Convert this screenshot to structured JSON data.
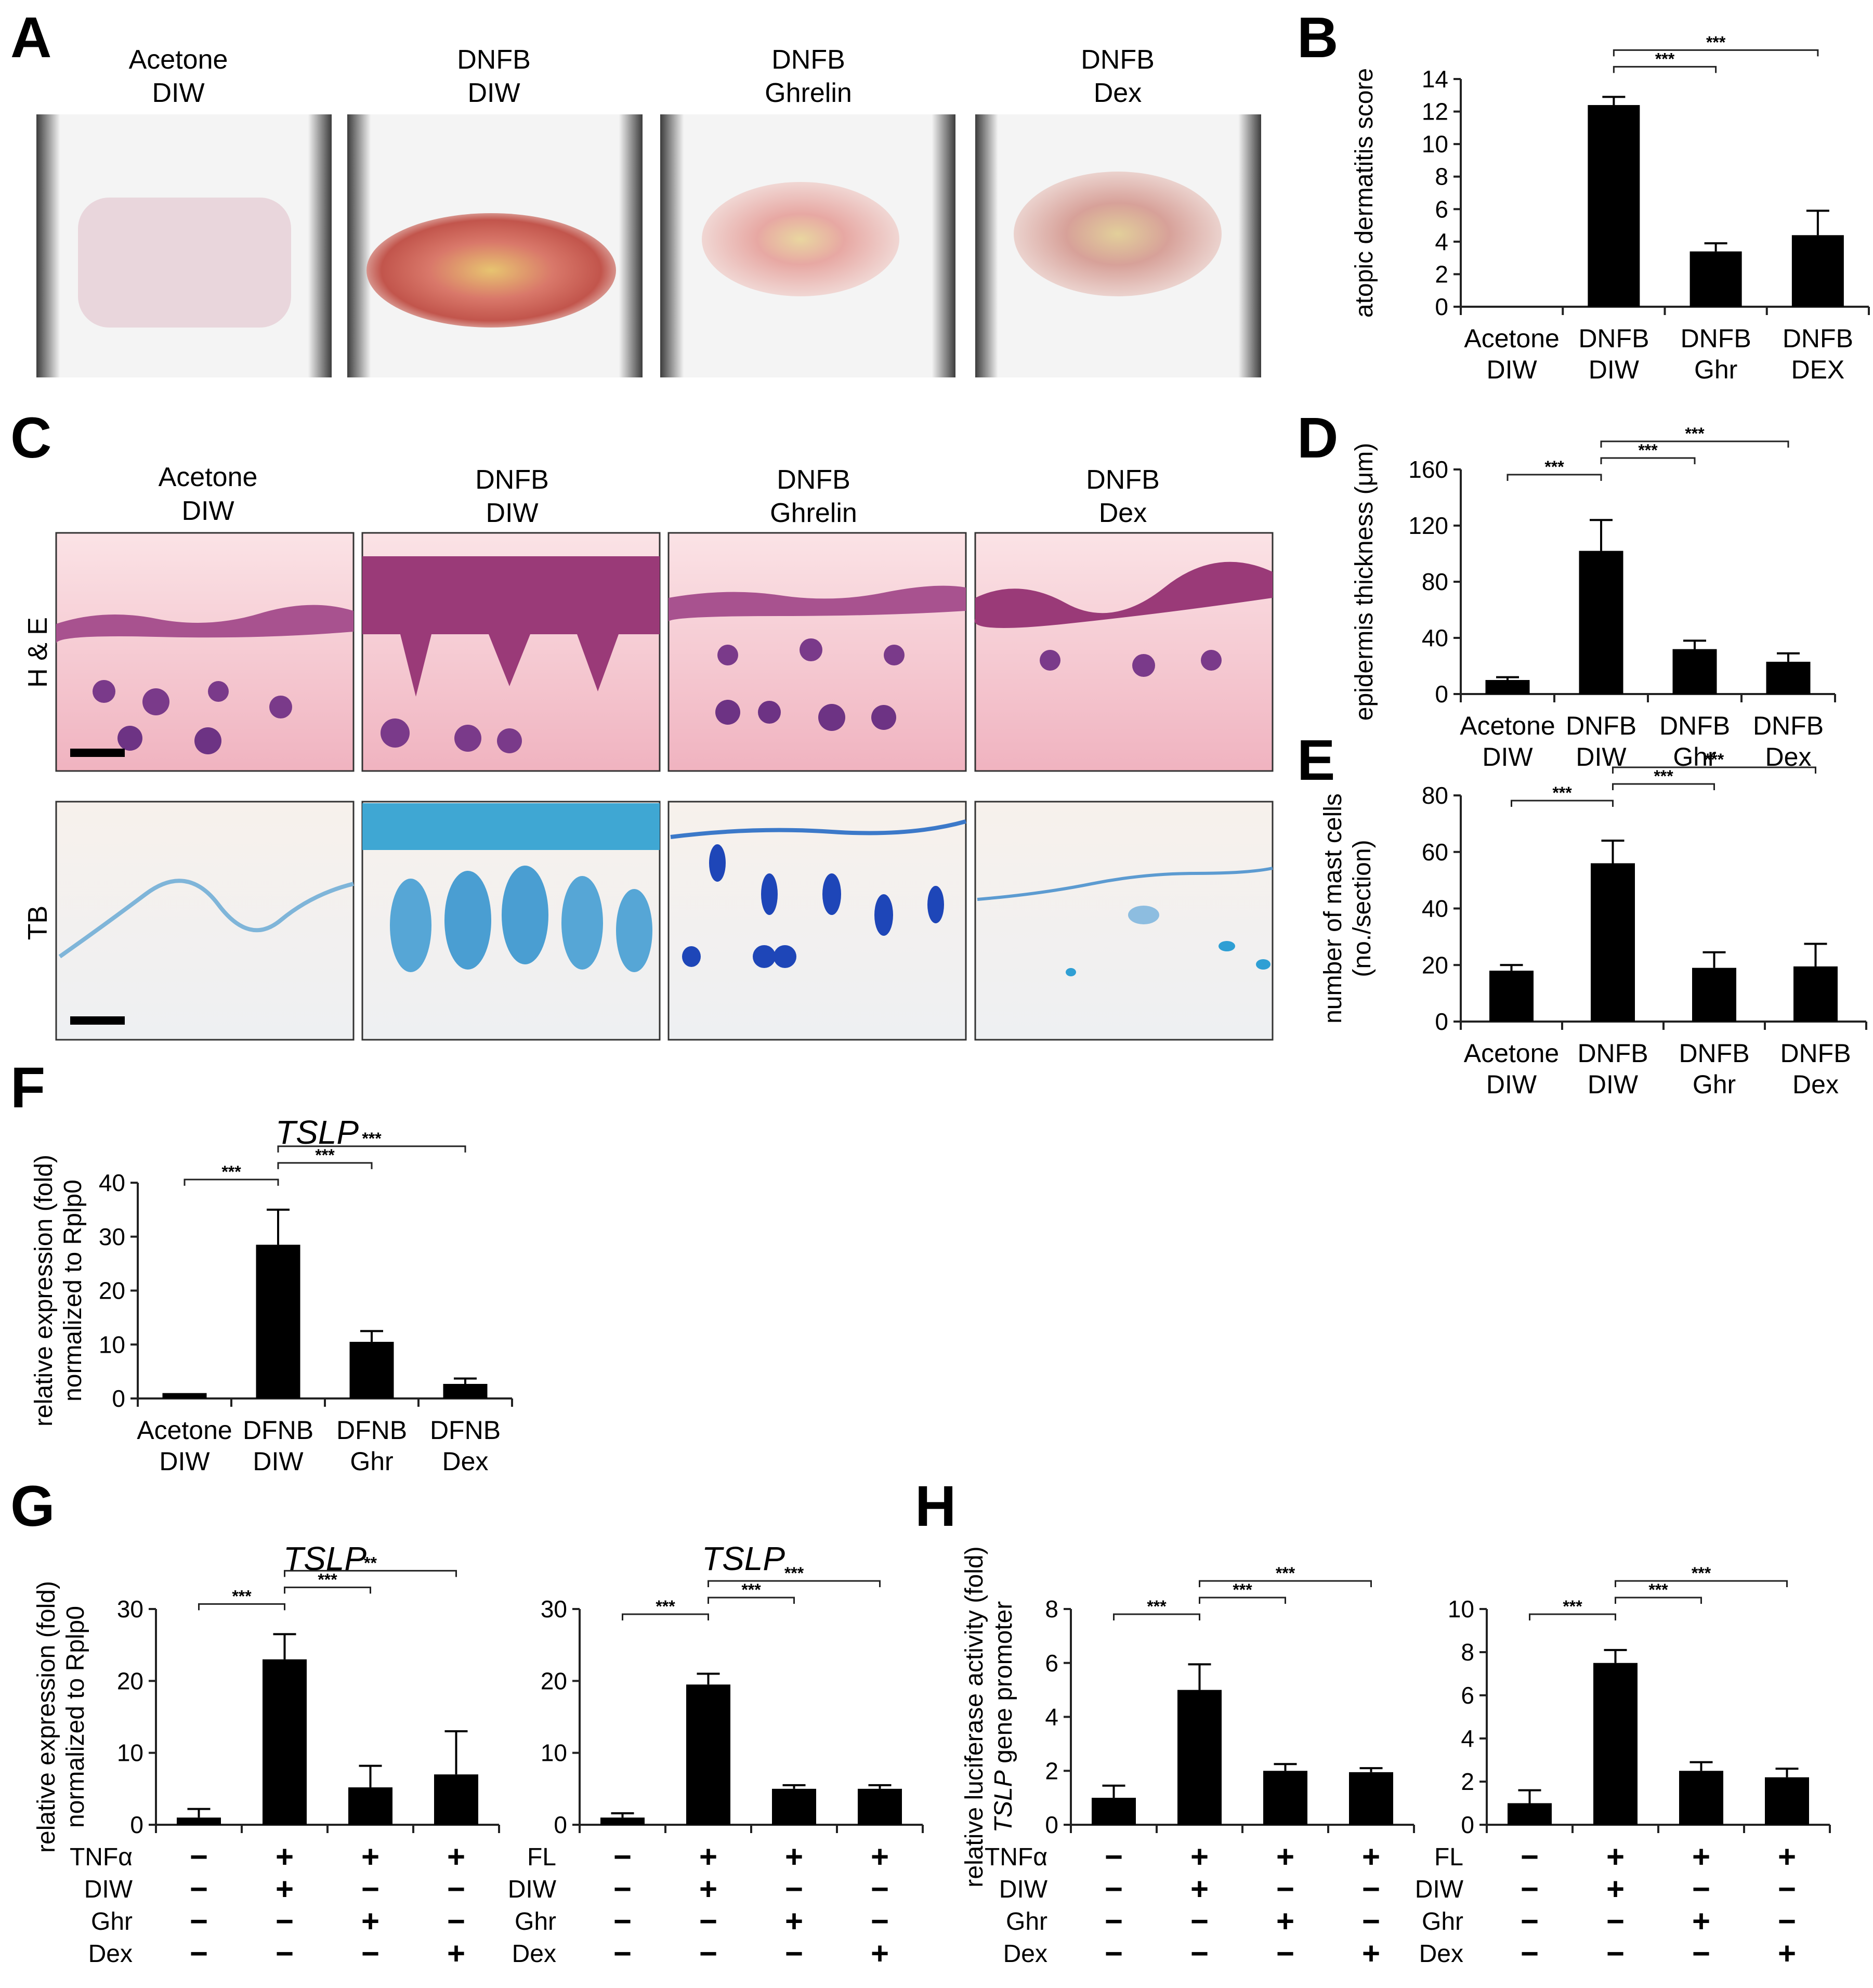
{
  "panel_a": {
    "label": "A",
    "photos": [
      {
        "line1": "Acetone",
        "line2": "DIW",
        "lesion": "none"
      },
      {
        "line1": "DNFB",
        "line2": "DIW",
        "lesion": "severe"
      },
      {
        "line1": "DNFB",
        "line2": "Ghrelin",
        "lesion": "mild"
      },
      {
        "line1": "DNFB",
        "line2": "Dex",
        "lesion": "moderate"
      }
    ]
  },
  "panel_c": {
    "label": "C",
    "columns": [
      {
        "line1": "Acetone",
        "line2": "DIW"
      },
      {
        "line1": "DNFB",
        "line2": "DIW"
      },
      {
        "line1": "DNFB",
        "line2": "Ghrelin"
      },
      {
        "line1": "DNFB",
        "line2": "Dex"
      }
    ],
    "rows": [
      "H & E",
      "TB"
    ]
  },
  "chart_data": [
    {
      "id": "B",
      "label": "B",
      "type": "bar",
      "ylabel": "atopic dermatitis score",
      "ylim": [
        0,
        14
      ],
      "yticks": [
        0,
        2,
        4,
        6,
        8,
        10,
        12,
        14
      ],
      "categories": [
        [
          "Acetone",
          "DIW"
        ],
        [
          "DNFB",
          "DIW"
        ],
        [
          "DNFB",
          "Ghr"
        ],
        [
          "DNFB",
          "DEX"
        ]
      ],
      "values": [
        0,
        12.4,
        3.4,
        4.4
      ],
      "errors": [
        0,
        0.5,
        0.5,
        1.5
      ],
      "significance": [
        {
          "from": 1,
          "to": 2,
          "label": "***"
        },
        {
          "from": 1,
          "to": 3,
          "label": "***"
        }
      ]
    },
    {
      "id": "D",
      "label": "D",
      "type": "bar",
      "ylabel": "epidermis thickness (μm)",
      "ylim": [
        0,
        160
      ],
      "yticks": [
        0,
        40,
        80,
        120,
        160
      ],
      "categories": [
        [
          "Acetone",
          "DIW"
        ],
        [
          "DNFB",
          "DIW"
        ],
        [
          "DNFB",
          "Ghr"
        ],
        [
          "DNFB",
          "Dex"
        ]
      ],
      "values": [
        10,
        102,
        32,
        23
      ],
      "errors": [
        2,
        22,
        6,
        6
      ],
      "significance": [
        {
          "from": 0,
          "to": 1,
          "label": "***"
        },
        {
          "from": 1,
          "to": 2,
          "label": "***"
        },
        {
          "from": 1,
          "to": 3,
          "label": "***"
        }
      ]
    },
    {
      "id": "E",
      "label": "E",
      "type": "bar",
      "ylabel": [
        "number of mast cells",
        "(no./section)"
      ],
      "ylim": [
        0,
        80
      ],
      "yticks": [
        0,
        20,
        40,
        60,
        80
      ],
      "categories": [
        [
          "Acetone",
          "DIW"
        ],
        [
          "DNFB",
          "DIW"
        ],
        [
          "DNFB",
          "Ghr"
        ],
        [
          "DNFB",
          "Dex"
        ]
      ],
      "values": [
        18,
        56,
        19,
        19.5
      ],
      "errors": [
        2,
        8,
        5.5,
        8
      ],
      "significance": [
        {
          "from": 0,
          "to": 1,
          "label": "***"
        },
        {
          "from": 1,
          "to": 2,
          "label": "***"
        },
        {
          "from": 1,
          "to": 3,
          "label": "***"
        }
      ]
    },
    {
      "id": "F",
      "label": "F",
      "type": "bar",
      "title": "TSLP",
      "ylabel": [
        "relative expression (fold)",
        "normalized to Rplp0"
      ],
      "ylim": [
        0,
        40
      ],
      "yticks": [
        0,
        10,
        20,
        30,
        40
      ],
      "categories": [
        [
          "Acetone",
          "DIW"
        ],
        [
          "DFNB",
          "DIW"
        ],
        [
          "DFNB",
          "Ghr"
        ],
        [
          "DFNB",
          "Dex"
        ]
      ],
      "values": [
        1,
        28.5,
        10.5,
        2.7
      ],
      "errors": [
        0,
        6.5,
        2,
        1
      ],
      "significance": [
        {
          "from": 0,
          "to": 1,
          "label": "***"
        },
        {
          "from": 1,
          "to": 2,
          "label": "***"
        },
        {
          "from": 1,
          "to": 3,
          "label": "***"
        }
      ]
    },
    {
      "id": "G1",
      "label": "G",
      "type": "bar",
      "title": "TSLP",
      "ylabel": [
        "relative expression (fold)",
        "normalized to Rplp0"
      ],
      "ylim": [
        0,
        30
      ],
      "yticks": [
        0,
        10,
        20,
        30
      ],
      "values": [
        1,
        23,
        5.2,
        7
      ],
      "errors": [
        1.2,
        3.5,
        3,
        6
      ],
      "treatments": [
        {
          "name": "TNFα",
          "signs": [
            "−",
            "+",
            "+",
            "+"
          ]
        },
        {
          "name": "DIW",
          "signs": [
            "−",
            "+",
            "−",
            "−"
          ]
        },
        {
          "name": "Ghr",
          "signs": [
            "−",
            "−",
            "+",
            "−"
          ]
        },
        {
          "name": "Dex",
          "signs": [
            "−",
            "−",
            "−",
            "+"
          ]
        }
      ],
      "significance": [
        {
          "from": 0,
          "to": 1,
          "label": "***"
        },
        {
          "from": 1,
          "to": 2,
          "label": "***"
        },
        {
          "from": 1,
          "to": 3,
          "label": "**"
        }
      ]
    },
    {
      "id": "G2",
      "label": "",
      "type": "bar",
      "title": "TSLP",
      "ylabel": "",
      "ylim": [
        0,
        30
      ],
      "yticks": [
        0,
        10,
        20,
        30
      ],
      "values": [
        1,
        19.5,
        5,
        5
      ],
      "errors": [
        0.6,
        1.5,
        0.5,
        0.5
      ],
      "treatments": [
        {
          "name": "FL",
          "signs": [
            "−",
            "+",
            "+",
            "+"
          ]
        },
        {
          "name": "DIW",
          "signs": [
            "−",
            "+",
            "−",
            "−"
          ]
        },
        {
          "name": "Ghr",
          "signs": [
            "−",
            "−",
            "+",
            "−"
          ]
        },
        {
          "name": "Dex",
          "signs": [
            "−",
            "−",
            "−",
            "+"
          ]
        }
      ],
      "significance": [
        {
          "from": 0,
          "to": 1,
          "label": "***"
        },
        {
          "from": 1,
          "to": 2,
          "label": "***"
        },
        {
          "from": 1,
          "to": 3,
          "label": "***"
        }
      ]
    },
    {
      "id": "H1",
      "label": "H",
      "type": "bar",
      "title": "",
      "ylabel": [
        "relative luciferase activity (fold)",
        "TSLP gene promoter"
      ],
      "ylim": [
        0,
        8
      ],
      "yticks": [
        0,
        2,
        4,
        6,
        8
      ],
      "values": [
        1,
        5,
        2,
        1.95
      ],
      "errors": [
        0.45,
        0.95,
        0.25,
        0.15
      ],
      "treatments": [
        {
          "name": "TNFα",
          "signs": [
            "−",
            "+",
            "+",
            "+"
          ]
        },
        {
          "name": "DIW",
          "signs": [
            "−",
            "+",
            "−",
            "−"
          ]
        },
        {
          "name": "Ghr",
          "signs": [
            "−",
            "−",
            "+",
            "−"
          ]
        },
        {
          "name": "Dex",
          "signs": [
            "−",
            "−",
            "−",
            "+"
          ]
        }
      ],
      "significance": [
        {
          "from": 0,
          "to": 1,
          "label": "***"
        },
        {
          "from": 1,
          "to": 2,
          "label": "***"
        },
        {
          "from": 1,
          "to": 3,
          "label": "***"
        }
      ]
    },
    {
      "id": "H2",
      "label": "",
      "type": "bar",
      "title": "",
      "ylabel": "",
      "ylim": [
        0,
        10
      ],
      "yticks": [
        0,
        2,
        4,
        6,
        8,
        10
      ],
      "values": [
        1,
        7.5,
        2.5,
        2.2
      ],
      "errors": [
        0.6,
        0.6,
        0.4,
        0.4
      ],
      "treatments": [
        {
          "name": "FL",
          "signs": [
            "−",
            "+",
            "+",
            "+"
          ]
        },
        {
          "name": "DIW",
          "signs": [
            "−",
            "+",
            "−",
            "−"
          ]
        },
        {
          "name": "Ghr",
          "signs": [
            "−",
            "−",
            "+",
            "−"
          ]
        },
        {
          "name": "Dex",
          "signs": [
            "−",
            "−",
            "−",
            "+"
          ]
        }
      ],
      "significance": [
        {
          "from": 0,
          "to": 1,
          "label": "***"
        },
        {
          "from": 1,
          "to": 2,
          "label": "***"
        },
        {
          "from": 1,
          "to": 3,
          "label": "***"
        }
      ]
    }
  ]
}
